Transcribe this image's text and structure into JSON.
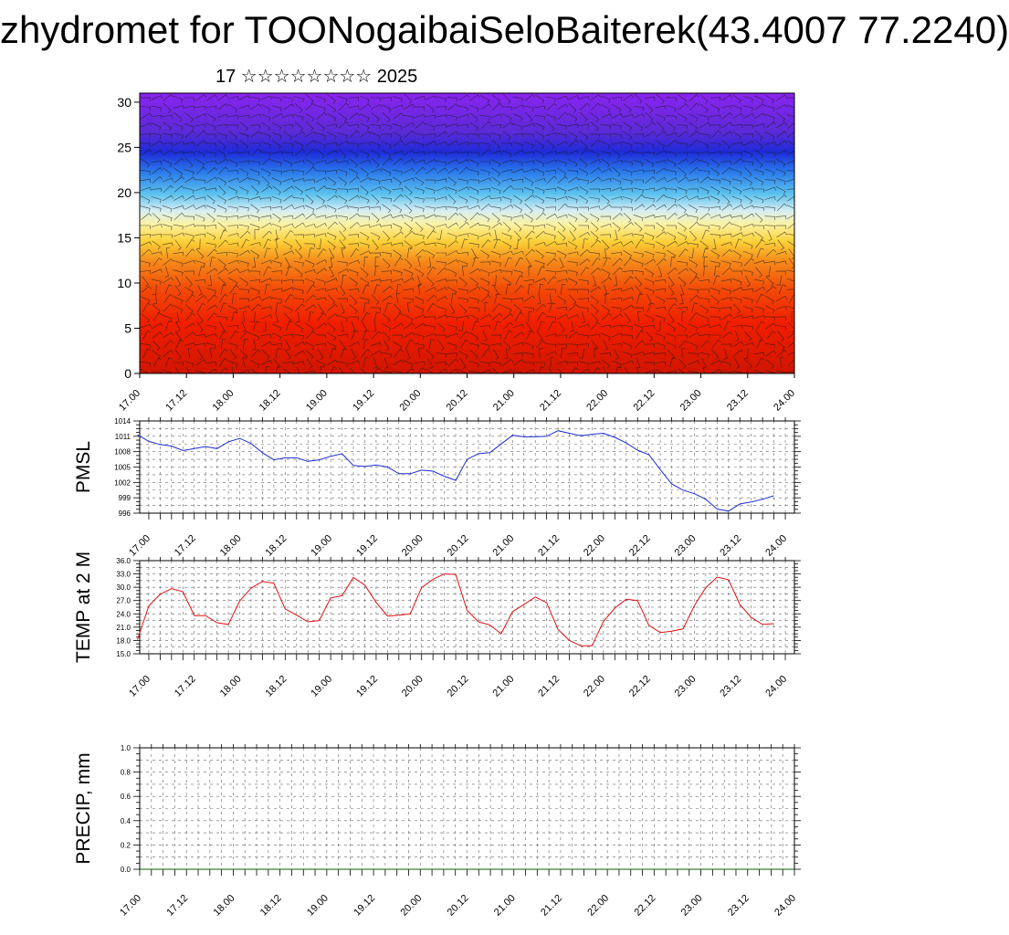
{
  "header": {
    "title": "zhydromet for TOONogaibaiSeloBaiterek(43.4007 77.2240)",
    "subtitle": "17 ☆☆☆☆☆☆☆☆ 2025"
  },
  "colors": {
    "pmsl_line": "#1f2bd6",
    "temp_line": "#e01010",
    "grid": "#666666",
    "axis": "#000000"
  },
  "chart_data": [
    {
      "type": "heatmap",
      "title": "",
      "xlabel": "",
      "ylabel": "",
      "x_ticks": [
        "17.00",
        "17.12",
        "18.00",
        "18.12",
        "19.00",
        "19.12",
        "20.00",
        "20.12",
        "21.00",
        "21.12",
        "22.00",
        "22.12",
        "23.00",
        "23.12",
        "24.00"
      ],
      "y_ticks": [
        "0",
        "5",
        "10",
        "15",
        "20",
        "25",
        "30"
      ],
      "xlim": [
        0,
        14
      ],
      "ylim": [
        0,
        31
      ],
      "colormap": "red (low) → orange → yellow → light blue → blue → violet (high)",
      "overlay": "wind barbs"
    },
    {
      "type": "line",
      "title": "",
      "ylabel": "PMSL",
      "x_ticks": [
        "17.00",
        "17.12",
        "18.00",
        "18.12",
        "19.00",
        "19.12",
        "20.00",
        "20.12",
        "21.00",
        "21.12",
        "22.00",
        "22.12",
        "23.00",
        "23.12",
        "24.00"
      ],
      "y_ticks": [
        "996",
        "999",
        "1002",
        "1005",
        "1008",
        "1011",
        "1014"
      ],
      "ylim": [
        996,
        1014
      ],
      "xlim": [
        -0.2,
        14.2
      ],
      "grid": true,
      "series": [
        {
          "x": [
            -0.25,
            0,
            0.25,
            0.5,
            0.75,
            1,
            1.25,
            1.5,
            1.75,
            2,
            2.25,
            2.5,
            2.75,
            3,
            3.25,
            3.5,
            3.75,
            4,
            4.25,
            4.5,
            4.75,
            5,
            5.25,
            5.5,
            5.75,
            6,
            6.25,
            6.5,
            6.75,
            7,
            7.25,
            7.5,
            7.75,
            8,
            8.25,
            8.5,
            8.75,
            9,
            9.25,
            9.5,
            9.75,
            10,
            10.25,
            10.5,
            10.75,
            11,
            11.25,
            11.5,
            11.75,
            12,
            12.25,
            12.5,
            12.75,
            13,
            13.25,
            13.5,
            13.75
          ],
          "values": [
            1011.3,
            1010.0,
            1009.4,
            1009.1,
            1008.2,
            1008.6,
            1009.0,
            1008.6,
            1009.9,
            1010.6,
            1009.6,
            1007.8,
            1006.4,
            1006.8,
            1006.8,
            1006.1,
            1006.4,
            1007.1,
            1007.6,
            1005.3,
            1005.1,
            1005.4,
            1005.0,
            1003.7,
            1003.7,
            1004.4,
            1004.2,
            1003.2,
            1002.4,
            1006.5,
            1007.6,
            1007.8,
            1009.5,
            1011.2,
            1010.9,
            1010.9,
            1011.0,
            1012.1,
            1011.6,
            1011.1,
            1011.4,
            1011.6,
            1010.8,
            1009.7,
            1008.3,
            1007.4,
            1004.5,
            1001.7,
            1000.5,
            999.8,
            998.7,
            996.8,
            996.4,
            997.8,
            998.2,
            998.7,
            999.4
          ]
        }
      ]
    },
    {
      "type": "line",
      "title": "",
      "ylabel": "TEMP at 2 M",
      "x_ticks": [
        "17.00",
        "17.12",
        "18.00",
        "18.12",
        "19.00",
        "19.12",
        "20.00",
        "20.12",
        "21.00",
        "21.12",
        "22.00",
        "22.12",
        "23.00",
        "23.12",
        "24.00"
      ],
      "y_ticks": [
        "15.0",
        "18.0",
        "21.0",
        "24.0",
        "27.0",
        "30.0",
        "33.0",
        "36.0"
      ],
      "ylim": [
        15,
        36
      ],
      "xlim": [
        -0.2,
        14.2
      ],
      "grid": true,
      "series": [
        {
          "x": [
            -0.25,
            0,
            0.25,
            0.5,
            0.75,
            1,
            1.25,
            1.5,
            1.75,
            2,
            2.25,
            2.5,
            2.75,
            3,
            3.25,
            3.5,
            3.75,
            4,
            4.25,
            4.5,
            4.75,
            5,
            5.25,
            5.5,
            5.75,
            6,
            6.25,
            6.5,
            6.75,
            7,
            7.25,
            7.5,
            7.75,
            8,
            8.25,
            8.5,
            8.75,
            9,
            9.25,
            9.5,
            9.75,
            10,
            10.25,
            10.5,
            10.75,
            11,
            11.25,
            11.5,
            11.75,
            12,
            12.25,
            12.5,
            12.75,
            13,
            13.25,
            13.5,
            13.75
          ],
          "values": [
            18.2,
            25.8,
            28.4,
            29.7,
            29.0,
            23.6,
            23.6,
            22.0,
            21.6,
            26.9,
            29.8,
            31.3,
            30.9,
            25.1,
            23.7,
            22.2,
            22.5,
            27.6,
            28.1,
            32.2,
            30.5,
            26.6,
            23.5,
            23.7,
            24.0,
            29.9,
            31.8,
            33.0,
            32.9,
            24.8,
            22.2,
            21.5,
            19.5,
            24.5,
            26.1,
            27.8,
            26.5,
            20.5,
            18.0,
            16.8,
            16.8,
            22.3,
            25.3,
            27.3,
            27.0,
            21.4,
            19.8,
            20.1,
            20.6,
            25.9,
            29.9,
            32.3,
            31.7,
            26.1,
            23.2,
            21.6,
            21.8
          ]
        }
      ]
    },
    {
      "type": "line",
      "title": "",
      "ylabel": "PRECIP, mm",
      "x_ticks": [
        "17.00",
        "17.12",
        "18.00",
        "18.12",
        "19.00",
        "19.12",
        "20.00",
        "20.12",
        "21.00",
        "21.12",
        "22.00",
        "22.12",
        "23.00",
        "23.12",
        "24.00"
      ],
      "y_ticks": [
        "0.0",
        "0.2",
        "0.4",
        "0.6",
        "0.8",
        "1.0"
      ],
      "ylim": [
        0,
        1
      ],
      "xlim": [
        0,
        14
      ],
      "grid": true,
      "series": [
        {
          "x": [
            0,
            14
          ],
          "values": [
            0,
            0
          ]
        }
      ]
    }
  ]
}
